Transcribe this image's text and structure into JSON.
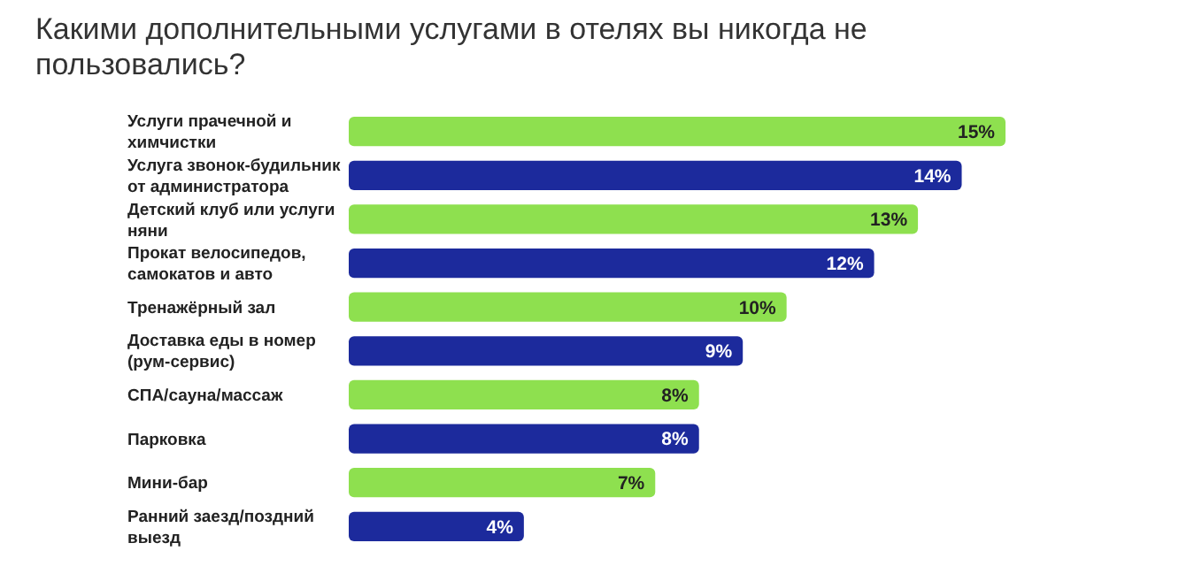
{
  "chart_data": {
    "type": "bar",
    "orientation": "horizontal",
    "title": "Какими дополнительными услугами в отелях вы никогда не пользовались?",
    "categories": [
      "Услуги прачечной и химчистки",
      "Услуга звонок-будильник от администратора",
      "Детский клуб или услуги няни",
      "Прокат велосипедов, самокатов и авто",
      "Тренажёрный зал",
      "Доставка еды в номер (рум-сервис)",
      "СПА/сауна/массаж",
      "Парковка",
      "Мини-бар",
      "Ранний заезд/поздний выезд"
    ],
    "values": [
      15,
      14,
      13,
      12,
      10,
      9,
      8,
      8,
      7,
      4
    ],
    "value_labels": [
      "15%",
      "14%",
      "13%",
      "12%",
      "10%",
      "9%",
      "8%",
      "8%",
      "7%",
      "4%"
    ],
    "colors": [
      "#8ee04f",
      "#1c2a9c",
      "#8ee04f",
      "#1c2a9c",
      "#8ee04f",
      "#1c2a9c",
      "#8ee04f",
      "#1c2a9c",
      "#8ee04f",
      "#1c2a9c"
    ],
    "tick_labels": "y"
  }
}
